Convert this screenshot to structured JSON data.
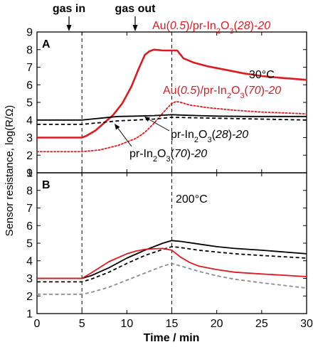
{
  "annotations": {
    "gas_in": "gas in",
    "gas_out": "gas out"
  },
  "chart_data": [
    {
      "type": "line",
      "panel_label": "A",
      "temperature_label": "30°C",
      "xlabel": "Time / min",
      "ylabel": "Sensor resistance, log(R/Ω)",
      "xlim": [
        0,
        30
      ],
      "ylim": [
        1,
        9
      ],
      "xticks": [
        0,
        5,
        10,
        15,
        20,
        25,
        30
      ],
      "yticks": [
        1,
        2,
        3,
        4,
        5,
        6,
        7,
        8,
        9
      ],
      "event_lines": [
        5,
        15
      ],
      "series": [
        {
          "name": "Au(0.5)/pr-In2O3(28)-20",
          "color": "#e0191e",
          "style": "solid",
          "x": [
            0,
            5,
            5.5,
            6.5,
            7.5,
            8.5,
            9.5,
            10.5,
            11.3,
            12,
            12.5,
            13,
            14,
            15,
            15.6,
            16.3,
            17.5,
            19,
            21,
            23,
            25,
            27,
            30
          ],
          "y": [
            3.0,
            3.0,
            3.1,
            3.4,
            3.85,
            4.3,
            4.95,
            5.9,
            6.9,
            7.7,
            7.9,
            8.0,
            7.95,
            7.95,
            7.95,
            7.5,
            7.25,
            7.05,
            6.85,
            6.65,
            6.5,
            6.4,
            6.28
          ]
        },
        {
          "name": "Au(0.5)/pr-In2O3(70)-20",
          "color": "#e0191e",
          "style": "dotted",
          "x": [
            0,
            5,
            7,
            9,
            11,
            12,
            13,
            14,
            15,
            15.5,
            16,
            17,
            19,
            22,
            25,
            30
          ],
          "y": [
            2.2,
            2.2,
            2.3,
            2.55,
            2.95,
            3.3,
            3.8,
            4.4,
            4.95,
            5.05,
            5.0,
            4.85,
            4.7,
            4.55,
            4.45,
            4.35
          ]
        },
        {
          "name": "pr-In2O3(28)-20",
          "color": "#000000",
          "style": "solid",
          "x": [
            0,
            5,
            7,
            9,
            11,
            13,
            15,
            16,
            18,
            20,
            24,
            30
          ],
          "y": [
            4.0,
            4.0,
            4.1,
            4.2,
            4.22,
            4.25,
            4.3,
            4.28,
            4.25,
            4.22,
            4.2,
            4.2
          ]
        },
        {
          "name": "pr-In2O3(70)-20",
          "color": "#000000",
          "style": "dashed",
          "x": [
            0,
            5,
            7,
            9,
            11,
            13,
            15,
            17,
            20,
            25,
            30
          ],
          "y": [
            3.75,
            3.75,
            3.85,
            3.95,
            4.0,
            4.05,
            4.15,
            4.13,
            4.1,
            4.05,
            4.0
          ]
        }
      ]
    },
    {
      "type": "line",
      "panel_label": "B",
      "temperature_label": "200°C",
      "xlabel": "Time / min",
      "ylabel": "Sensor resistance, log(R/Ω)",
      "xlim": [
        0,
        30
      ],
      "ylim": [
        1,
        9
      ],
      "xticks": [
        0,
        5,
        10,
        15,
        20,
        25,
        30
      ],
      "yticks": [
        1,
        2,
        3,
        4,
        5,
        6,
        7,
        8,
        9
      ],
      "event_lines": [
        5,
        15
      ],
      "series": [
        {
          "name": "",
          "color": "#000000",
          "style": "solid",
          "x": [
            0,
            5,
            6,
            8,
            10,
            12,
            14,
            15,
            16,
            18,
            20,
            22,
            25,
            30
          ],
          "y": [
            3.0,
            3.0,
            3.15,
            3.6,
            4.15,
            4.6,
            5.0,
            5.15,
            5.1,
            4.95,
            4.8,
            4.7,
            4.6,
            4.4
          ]
        },
        {
          "name": "",
          "color": "#000000",
          "style": "dashed",
          "x": [
            0,
            5,
            6,
            8,
            10,
            12,
            14,
            15,
            16,
            18,
            20,
            22,
            25,
            30
          ],
          "y": [
            2.8,
            2.8,
            2.95,
            3.35,
            3.85,
            4.3,
            4.65,
            4.8,
            4.75,
            4.6,
            4.5,
            4.4,
            4.3,
            4.15
          ]
        },
        {
          "name": "",
          "color": "#e0191e",
          "style": "solid",
          "x": [
            0,
            5,
            6,
            8,
            10,
            11,
            12,
            13,
            14,
            15,
            16,
            17,
            18,
            20,
            22,
            25,
            30
          ],
          "y": [
            3.0,
            3.0,
            3.3,
            3.95,
            4.4,
            4.55,
            4.65,
            4.68,
            4.7,
            4.6,
            4.2,
            3.9,
            3.7,
            3.5,
            3.35,
            3.25,
            3.1
          ]
        },
        {
          "name": "",
          "color": "#8c8c8c",
          "style": "dashed",
          "x": [
            0,
            5,
            6,
            8,
            10,
            12,
            14,
            15,
            16,
            18,
            20,
            22,
            25,
            30
          ],
          "y": [
            2.1,
            2.1,
            2.2,
            2.5,
            2.9,
            3.3,
            3.7,
            3.85,
            3.7,
            3.4,
            3.15,
            2.95,
            2.75,
            2.45
          ]
        }
      ]
    }
  ]
}
